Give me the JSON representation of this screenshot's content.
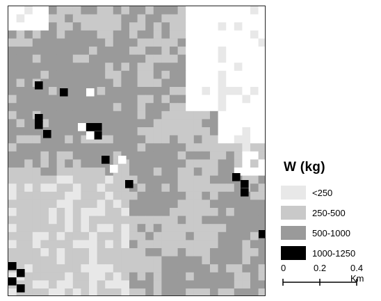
{
  "legend": {
    "title": "W (kg)",
    "classes": [
      {
        "label": "<250",
        "color": "#e8e8e8"
      },
      {
        "label": "250-500",
        "color": "#c9c9c9"
      },
      {
        "label": "500-1000",
        "color": "#9a9a9a"
      },
      {
        "label": "1000-1250",
        "color": "#000000"
      }
    ]
  },
  "scalebar": {
    "labels": [
      "0",
      "0.2",
      "0.4 Km"
    ]
  },
  "palette": {
    "background": "#ffffff",
    "outside": "#ffffff"
  }
}
